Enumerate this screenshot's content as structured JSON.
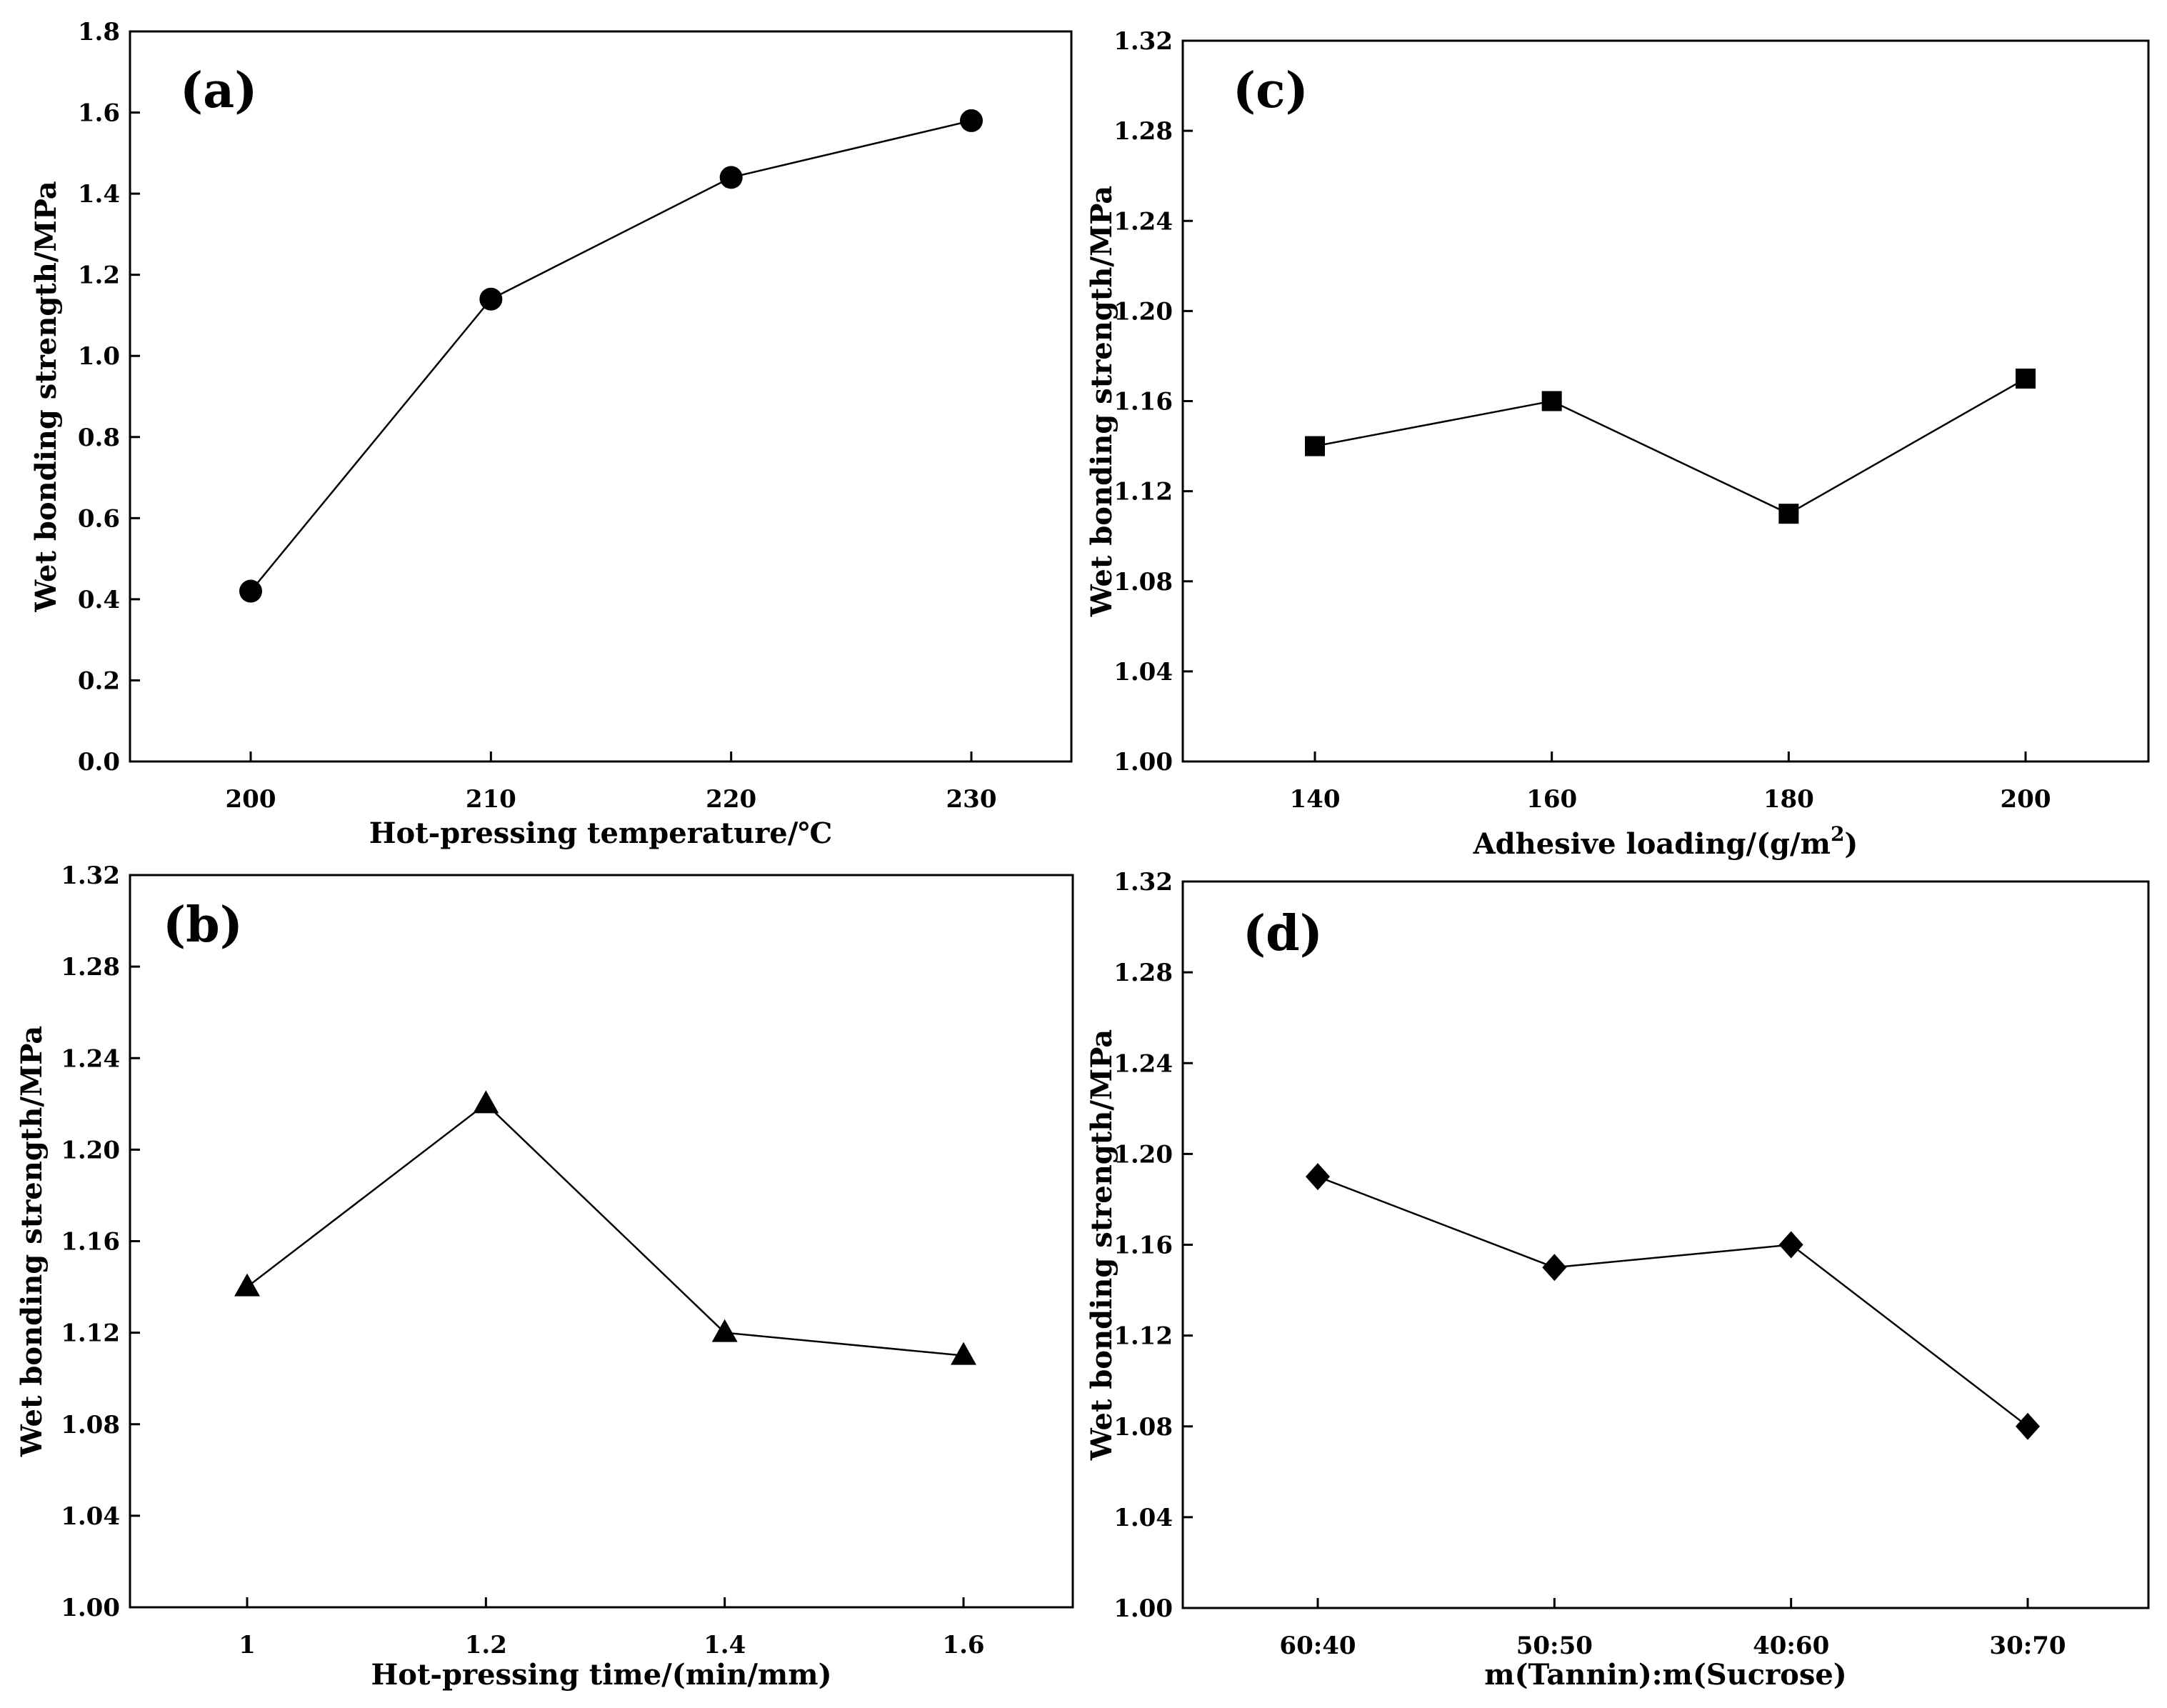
{
  "chart_data": [
    {
      "type": "line",
      "panel": "(a)",
      "xlabel": "Hot-pressing temperature/℃",
      "ylabel": "Wet bonding strength/MPa",
      "categories": [
        "200",
        "210",
        "220",
        "230"
      ],
      "values": [
        0.42,
        1.14,
        1.44,
        1.58
      ],
      "marker": "circle",
      "ylim": [
        0.0,
        1.8
      ],
      "yticks": [
        "0.0",
        "0.2",
        "0.4",
        "0.6",
        "0.8",
        "1.0",
        "1.2",
        "1.4",
        "1.6",
        "1.8"
      ]
    },
    {
      "type": "line",
      "panel": "(b)",
      "xlabel": "Hot-pressing time/(min/mm)",
      "ylabel": "Wet bonding strength/MPa",
      "categories": [
        "1",
        "1.2",
        "1.4",
        "1.6"
      ],
      "values": [
        1.14,
        1.22,
        1.12,
        1.11
      ],
      "marker": "triangle",
      "ylim": [
        1.0,
        1.32
      ],
      "yticks": [
        "1.00",
        "1.04",
        "1.08",
        "1.12",
        "1.16",
        "1.20",
        "1.24",
        "1.28",
        "1.32"
      ]
    },
    {
      "type": "line",
      "panel": "(c)",
      "xlabel": "Adhesive loading/(g/m",
      "xlabel_sup": "2",
      "xlabel_end": ")",
      "ylabel": "Wet bonding strength/MPa",
      "categories": [
        "140",
        "160",
        "180",
        "200"
      ],
      "values": [
        1.14,
        1.16,
        1.11,
        1.17
      ],
      "marker": "square",
      "ylim": [
        1.0,
        1.32
      ],
      "yticks": [
        "1.00",
        "1.04",
        "1.08",
        "1.12",
        "1.16",
        "1.20",
        "1.24",
        "1.28",
        "1.32"
      ]
    },
    {
      "type": "line",
      "panel": "(d)",
      "xlabel": "m(Tannin):m(Sucrose)",
      "ylabel": "Wet bonding strength/MPa",
      "categories": [
        "60:40",
        "50:50",
        "40:60",
        "30:70"
      ],
      "values": [
        1.19,
        1.15,
        1.16,
        1.08
      ],
      "marker": "diamond",
      "ylim": [
        1.0,
        1.32
      ],
      "yticks": [
        "1.00",
        "1.04",
        "1.08",
        "1.12",
        "1.16",
        "1.20",
        "1.24",
        "1.28",
        "1.32"
      ]
    }
  ]
}
